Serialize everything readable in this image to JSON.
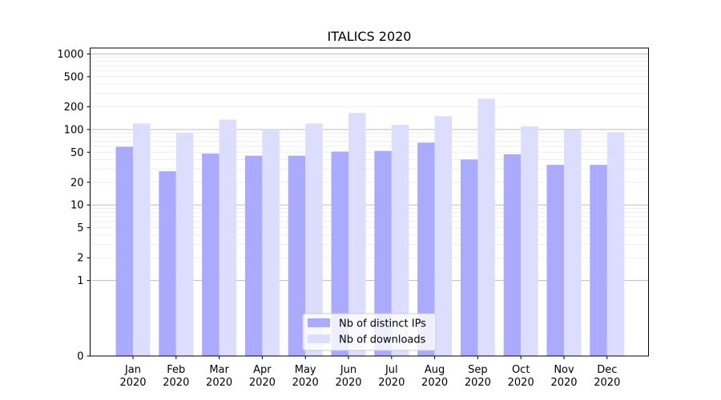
{
  "chart_data": {
    "type": "bar",
    "title": "ITALICS 2020",
    "xlabel": "",
    "ylabel": "",
    "yscale": "symlog",
    "ylim": [
      0,
      1200
    ],
    "grid": "horizontal",
    "legend_position": "bottom-center",
    "categories": [
      "Jan 2020",
      "Feb 2020",
      "Mar 2020",
      "Apr 2020",
      "May 2020",
      "Jun 2020",
      "Jul 2020",
      "Aug 2020",
      "Sep 2020",
      "Oct 2020",
      "Nov 2020",
      "Dec 2020"
    ],
    "category_lines": [
      [
        "Jan",
        "2020"
      ],
      [
        "Feb",
        "2020"
      ],
      [
        "Mar",
        "2020"
      ],
      [
        "Apr",
        "2020"
      ],
      [
        "May",
        "2020"
      ],
      [
        "Jun",
        "2020"
      ],
      [
        "Jul",
        "2020"
      ],
      [
        "Aug",
        "2020"
      ],
      [
        "Sep",
        "2020"
      ],
      [
        "Oct",
        "2020"
      ],
      [
        "Nov",
        "2020"
      ],
      [
        "Dec",
        "2020"
      ]
    ],
    "y_ticks": [
      0,
      1,
      2,
      5,
      10,
      20,
      50,
      100,
      200,
      500,
      1000
    ],
    "series": [
      {
        "name": "Nb of distinct IPs",
        "color": "#aaaaff",
        "values": [
          59,
          28,
          48,
          45,
          45,
          51,
          52,
          67,
          40,
          47,
          34,
          34
        ]
      },
      {
        "name": "Nb of downloads",
        "color": "#ddddff",
        "values": [
          120,
          90,
          135,
          100,
          120,
          166,
          115,
          150,
          255,
          110,
          98,
          92
        ]
      }
    ]
  }
}
